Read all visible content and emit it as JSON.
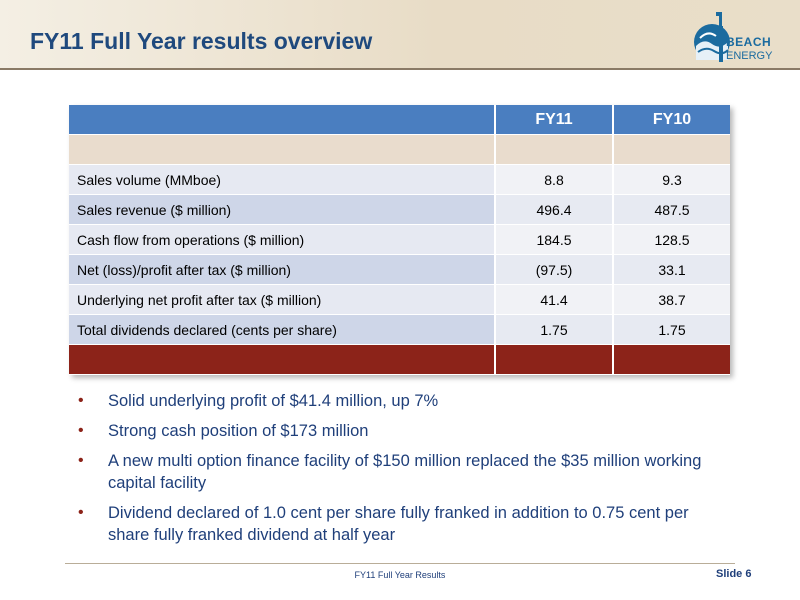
{
  "header": {
    "title": "FY11 Full Year results overview"
  },
  "logo": {
    "line1": "BEACH",
    "line2": "ENERGY"
  },
  "table": {
    "columns": [
      "",
      "FY11",
      "FY10"
    ],
    "rows": [
      {
        "label": "Sales volume (MMboe)",
        "fy11": "8.8",
        "fy10": "9.3"
      },
      {
        "label": "Sales revenue ($ million)",
        "fy11": "496.4",
        "fy10": "487.5"
      },
      {
        "label": "Cash flow from operations ($ million)",
        "fy11": "184.5",
        "fy10": "128.5"
      },
      {
        "label": "Net (loss)/profit after tax ($ million)",
        "fy11": "(97.5)",
        "fy10": "33.1"
      },
      {
        "label": "Underlying net profit after tax ($ million)",
        "fy11": "41.4",
        "fy10": "38.7"
      },
      {
        "label": "Total dividends declared (cents per share)",
        "fy11": "1.75",
        "fy10": "1.75"
      }
    ]
  },
  "bullets": [
    "Solid underlying profit of $41.4 million, up 7%",
    "Strong cash position of $173 million",
    "A new multi option finance facility of $150 million replaced the $35 million working capital facility",
    "Dividend declared of 1.0 cent per share fully franked in addition to 0.75 cent per share fully franked dividend at half year"
  ],
  "bullet_symbol": "•",
  "footer": {
    "center_text": "FY11 Full Year Results",
    "slide_label": "Slide 6"
  },
  "colors": {
    "title": "#1f497d",
    "table_header": "#4a7ec0",
    "table_tan_row": "#e9dccd",
    "table_footer_row": "#8c2319",
    "bullet_text": "#1f3f7a",
    "bullet_marker": "#8c2319"
  }
}
